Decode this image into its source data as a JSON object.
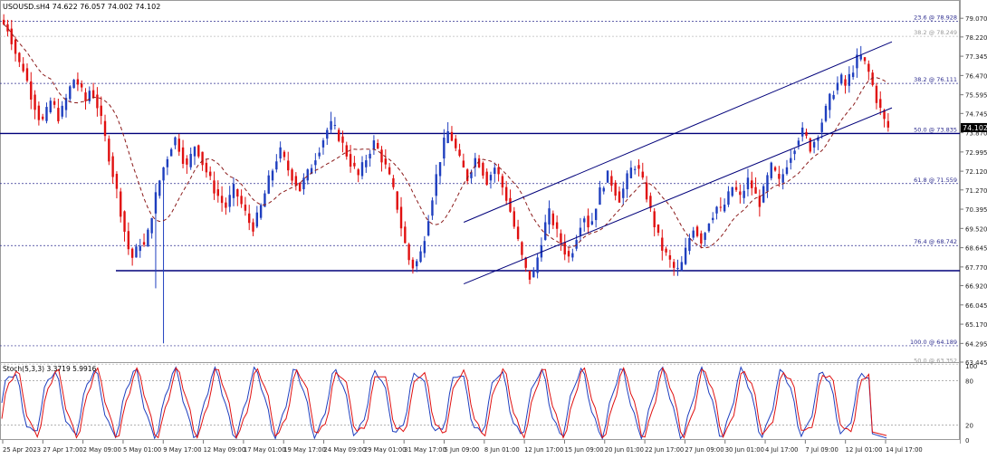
{
  "header": {
    "symbol_line": "USOUSD.sH4  74.622 76.057 74.002 74.102"
  },
  "stoch_header": "Stoch(5,3,3) 3.3719 5.9916",
  "colors": {
    "bull": "#1f3fbf",
    "bear": "#e01010",
    "ma": "#8b1a1a",
    "level": "#00007a",
    "fib": "#2d2d8f",
    "stoch_main": "#1f3fbf",
    "stoch_signal": "#e01010",
    "price_tag_bg": "#000000"
  },
  "chart_data": [
    {
      "type": "candlestick",
      "title": "USOUSD.sH4",
      "ylim": [
        63.445,
        79.9
      ],
      "y_ticks": [
        "79.070",
        "78.220",
        "77.345",
        "76.470",
        "75.595",
        "74.745",
        "73.870",
        "72.995",
        "72.120",
        "71.270",
        "70.395",
        "69.520",
        "68.645",
        "67.770",
        "66.920",
        "66.045",
        "65.170",
        "64.295",
        "63.445"
      ],
      "current_price": "74.102",
      "x_labels": [
        "25 Apr 2023",
        "27 Apr 17:00",
        "2 May 09:00",
        "5 May 01:00",
        "9 May 17:00",
        "12 May 09:00",
        "17 May 01:00",
        "19 May 17:00",
        "24 May 09:00",
        "29 May 01:00",
        "31 May 17:00",
        "5 Jun 09:00",
        "8 Jun 01:00",
        "12 Jun 17:00",
        "15 Jun 09:00",
        "20 Jun 01:00",
        "22 Jun 17:00",
        "27 Jun 09:00",
        "30 Jun 01:00",
        "4 Jul 17:00",
        "7 Jul 09:00",
        "12 Jul 01:00",
        "14 Jul 17:00"
      ],
      "fib_levels": [
        {
          "label": "23.6 @ 78.928",
          "value": 78.928
        },
        {
          "label": "38.2 @ 78.249",
          "value": 78.249
        },
        {
          "label": "38.2 @ 76.111",
          "value": 76.111
        },
        {
          "label": "50.0 @ 73.835",
          "value": 73.835
        },
        {
          "label": "61.8 @ 71.559",
          "value": 71.559
        },
        {
          "label": "76.4 @ 68.742",
          "value": 68.742
        },
        {
          "label": "100.0 @ 64.189",
          "value": 64.189
        },
        {
          "label": "50.0 @ 63.352",
          "value": 63.352
        }
      ],
      "horizontal_levels": [
        73.835,
        67.6
      ],
      "channel": {
        "lower": [
          [
            0.52,
            67.0
          ],
          [
            1.0,
            75.0
          ]
        ],
        "upper": [
          [
            0.52,
            69.8
          ],
          [
            1.0,
            78.0
          ]
        ]
      },
      "close_path": [
        78.8,
        78.6,
        78.1,
        77.5,
        77.0,
        76.8,
        76.2,
        75.6,
        75.1,
        74.6,
        74.4,
        74.8,
        75.3,
        75.0,
        74.6,
        74.9,
        75.4,
        75.9,
        76.3,
        76.1,
        75.7,
        75.3,
        75.8,
        75.6,
        75.1,
        74.4,
        73.6,
        72.8,
        72.0,
        71.2,
        70.3,
        69.4,
        68.6,
        68.2,
        68.5,
        68.9,
        68.7,
        69.3,
        70.2,
        71.0,
        71.7,
        72.3,
        72.8,
        73.3,
        73.6,
        73.2,
        72.7,
        72.3,
        72.8,
        73.3,
        73.0,
        72.5,
        72.1,
        71.7,
        71.3,
        71.0,
        70.7,
        70.5,
        70.9,
        71.3,
        71.0,
        70.6,
        70.2,
        69.8,
        69.6,
        70.0,
        70.5,
        71.1,
        71.7,
        72.2,
        72.7,
        73.0,
        72.6,
        72.2,
        71.9,
        71.6,
        71.3,
        71.7,
        72.0,
        72.4,
        72.8,
        73.2,
        73.6,
        74.0,
        74.2,
        74.0,
        73.7,
        73.3,
        72.9,
        72.5,
        72.2,
        71.9,
        72.3,
        72.7,
        73.1,
        73.4,
        73.1,
        72.7,
        72.3,
        71.8,
        71.2,
        70.5,
        69.6,
        68.8,
        68.1,
        67.8,
        68.0,
        68.4,
        69.2,
        70.1,
        71.0,
        71.9,
        72.7,
        73.4,
        73.9,
        73.6,
        73.1,
        72.6,
        72.2,
        71.8,
        72.3,
        72.7,
        72.5,
        72.1,
        71.7,
        72.0,
        72.3,
        71.9,
        71.4,
        70.9,
        70.3,
        69.6,
        68.9,
        68.2,
        67.6,
        67.3,
        67.5,
        68.2,
        69.0,
        69.7,
        70.2,
        69.8,
        69.3,
        68.9,
        68.5,
        68.2,
        68.6,
        69.2,
        69.8,
        70.1,
        69.7,
        69.9,
        70.6,
        71.2,
        71.6,
        71.9,
        71.6,
        71.2,
        70.9,
        71.3,
        71.8,
        72.2,
        72.4,
        72.1,
        71.6,
        71.0,
        70.3,
        69.7,
        69.1,
        68.6,
        68.3,
        68.0,
        67.7,
        67.6,
        67.9,
        68.5,
        69.1,
        69.6,
        69.3,
        69.0,
        69.4,
        69.9,
        70.2,
        70.5,
        70.3,
        70.6,
        71.0,
        71.4,
        71.2,
        70.9,
        71.3,
        71.7,
        71.4,
        71.0,
        70.7,
        71.2,
        71.8,
        72.3,
        72.0,
        71.6,
        72.0,
        72.5,
        72.9,
        73.3,
        73.7,
        73.9,
        73.6,
        73.2,
        73.5,
        73.9,
        74.4,
        74.9,
        75.4,
        75.8,
        76.1,
        76.3,
        76.0,
        76.4,
        76.8,
        77.2,
        77.3,
        77.0,
        76.6,
        76.0,
        75.4,
        74.9,
        74.4,
        74.1
      ]
    },
    {
      "type": "line",
      "title": "Stoch(5,3,3)",
      "ylim": [
        0,
        100
      ],
      "y_ticks": [
        "100",
        "80",
        "20",
        "0"
      ],
      "levels": [
        80,
        20
      ],
      "last_main": 3.3719,
      "last_signal": 5.9916
    }
  ]
}
